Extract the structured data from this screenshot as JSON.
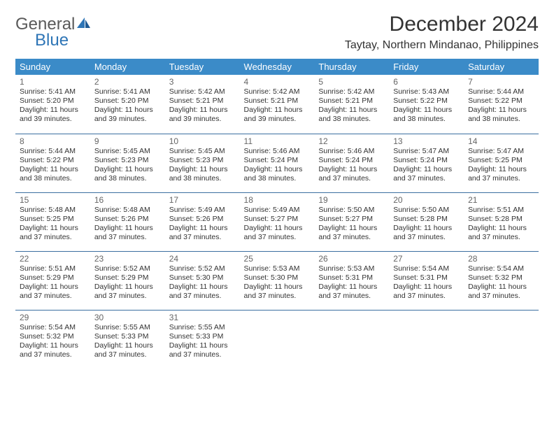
{
  "logo": {
    "word1": "General",
    "word2": "Blue"
  },
  "title": "December 2024",
  "location": "Taytay, Northern Mindanao, Philippines",
  "style": {
    "header_bg": "#3b8bc8",
    "header_text": "#ffffff",
    "row_border": "#3b6fa0",
    "page_bg": "#ffffff",
    "text_color": "#333333",
    "logo_gray": "#5a5a5a",
    "logo_blue": "#2e75b6",
    "title_fontsize": 30,
    "location_fontsize": 16,
    "dayhead_fontsize": 13,
    "cell_fontsize": 10.5,
    "daynum_fontsize": 12
  },
  "calendar": {
    "day_headers": [
      "Sunday",
      "Monday",
      "Tuesday",
      "Wednesday",
      "Thursday",
      "Friday",
      "Saturday"
    ],
    "weeks": [
      [
        {
          "n": "1",
          "sunrise": "5:41 AM",
          "sunset": "5:20 PM",
          "daylight": "11 hours and 39 minutes."
        },
        {
          "n": "2",
          "sunrise": "5:41 AM",
          "sunset": "5:20 PM",
          "daylight": "11 hours and 39 minutes."
        },
        {
          "n": "3",
          "sunrise": "5:42 AM",
          "sunset": "5:21 PM",
          "daylight": "11 hours and 39 minutes."
        },
        {
          "n": "4",
          "sunrise": "5:42 AM",
          "sunset": "5:21 PM",
          "daylight": "11 hours and 39 minutes."
        },
        {
          "n": "5",
          "sunrise": "5:42 AM",
          "sunset": "5:21 PM",
          "daylight": "11 hours and 38 minutes."
        },
        {
          "n": "6",
          "sunrise": "5:43 AM",
          "sunset": "5:22 PM",
          "daylight": "11 hours and 38 minutes."
        },
        {
          "n": "7",
          "sunrise": "5:44 AM",
          "sunset": "5:22 PM",
          "daylight": "11 hours and 38 minutes."
        }
      ],
      [
        {
          "n": "8",
          "sunrise": "5:44 AM",
          "sunset": "5:22 PM",
          "daylight": "11 hours and 38 minutes."
        },
        {
          "n": "9",
          "sunrise": "5:45 AM",
          "sunset": "5:23 PM",
          "daylight": "11 hours and 38 minutes."
        },
        {
          "n": "10",
          "sunrise": "5:45 AM",
          "sunset": "5:23 PM",
          "daylight": "11 hours and 38 minutes."
        },
        {
          "n": "11",
          "sunrise": "5:46 AM",
          "sunset": "5:24 PM",
          "daylight": "11 hours and 38 minutes."
        },
        {
          "n": "12",
          "sunrise": "5:46 AM",
          "sunset": "5:24 PM",
          "daylight": "11 hours and 37 minutes."
        },
        {
          "n": "13",
          "sunrise": "5:47 AM",
          "sunset": "5:24 PM",
          "daylight": "11 hours and 37 minutes."
        },
        {
          "n": "14",
          "sunrise": "5:47 AM",
          "sunset": "5:25 PM",
          "daylight": "11 hours and 37 minutes."
        }
      ],
      [
        {
          "n": "15",
          "sunrise": "5:48 AM",
          "sunset": "5:25 PM",
          "daylight": "11 hours and 37 minutes."
        },
        {
          "n": "16",
          "sunrise": "5:48 AM",
          "sunset": "5:26 PM",
          "daylight": "11 hours and 37 minutes."
        },
        {
          "n": "17",
          "sunrise": "5:49 AM",
          "sunset": "5:26 PM",
          "daylight": "11 hours and 37 minutes."
        },
        {
          "n": "18",
          "sunrise": "5:49 AM",
          "sunset": "5:27 PM",
          "daylight": "11 hours and 37 minutes."
        },
        {
          "n": "19",
          "sunrise": "5:50 AM",
          "sunset": "5:27 PM",
          "daylight": "11 hours and 37 minutes."
        },
        {
          "n": "20",
          "sunrise": "5:50 AM",
          "sunset": "5:28 PM",
          "daylight": "11 hours and 37 minutes."
        },
        {
          "n": "21",
          "sunrise": "5:51 AM",
          "sunset": "5:28 PM",
          "daylight": "11 hours and 37 minutes."
        }
      ],
      [
        {
          "n": "22",
          "sunrise": "5:51 AM",
          "sunset": "5:29 PM",
          "daylight": "11 hours and 37 minutes."
        },
        {
          "n": "23",
          "sunrise": "5:52 AM",
          "sunset": "5:29 PM",
          "daylight": "11 hours and 37 minutes."
        },
        {
          "n": "24",
          "sunrise": "5:52 AM",
          "sunset": "5:30 PM",
          "daylight": "11 hours and 37 minutes."
        },
        {
          "n": "25",
          "sunrise": "5:53 AM",
          "sunset": "5:30 PM",
          "daylight": "11 hours and 37 minutes."
        },
        {
          "n": "26",
          "sunrise": "5:53 AM",
          "sunset": "5:31 PM",
          "daylight": "11 hours and 37 minutes."
        },
        {
          "n": "27",
          "sunrise": "5:54 AM",
          "sunset": "5:31 PM",
          "daylight": "11 hours and 37 minutes."
        },
        {
          "n": "28",
          "sunrise": "5:54 AM",
          "sunset": "5:32 PM",
          "daylight": "11 hours and 37 minutes."
        }
      ],
      [
        {
          "n": "29",
          "sunrise": "5:54 AM",
          "sunset": "5:32 PM",
          "daylight": "11 hours and 37 minutes."
        },
        {
          "n": "30",
          "sunrise": "5:55 AM",
          "sunset": "5:33 PM",
          "daylight": "11 hours and 37 minutes."
        },
        {
          "n": "31",
          "sunrise": "5:55 AM",
          "sunset": "5:33 PM",
          "daylight": "11 hours and 37 minutes."
        },
        null,
        null,
        null,
        null
      ]
    ]
  },
  "labels": {
    "sunrise": "Sunrise:",
    "sunset": "Sunset:",
    "daylight": "Daylight:"
  }
}
